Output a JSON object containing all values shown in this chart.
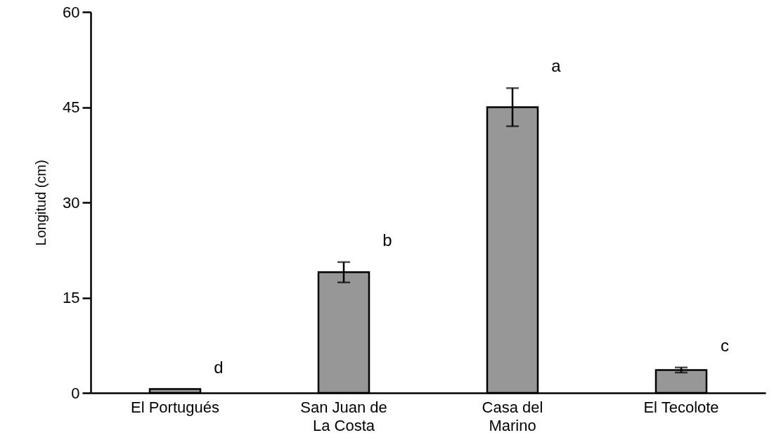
{
  "chart_data": {
    "type": "bar",
    "ylabel": "Longitud (cm)",
    "categories": [
      "El Portugués",
      "San Juan de La Costa",
      "Casa del Marino",
      "El Tecolote"
    ],
    "values": [
      0.6,
      19,
      45,
      3.6
    ],
    "errors": [
      null,
      1.6,
      3,
      0.4
    ],
    "color": "#979797",
    "ylim": [
      0,
      60
    ],
    "yticks": [
      0,
      15,
      30,
      45,
      60
    ],
    "grid": false,
    "annotations": [
      "d",
      "b",
      "a",
      "c"
    ]
  }
}
